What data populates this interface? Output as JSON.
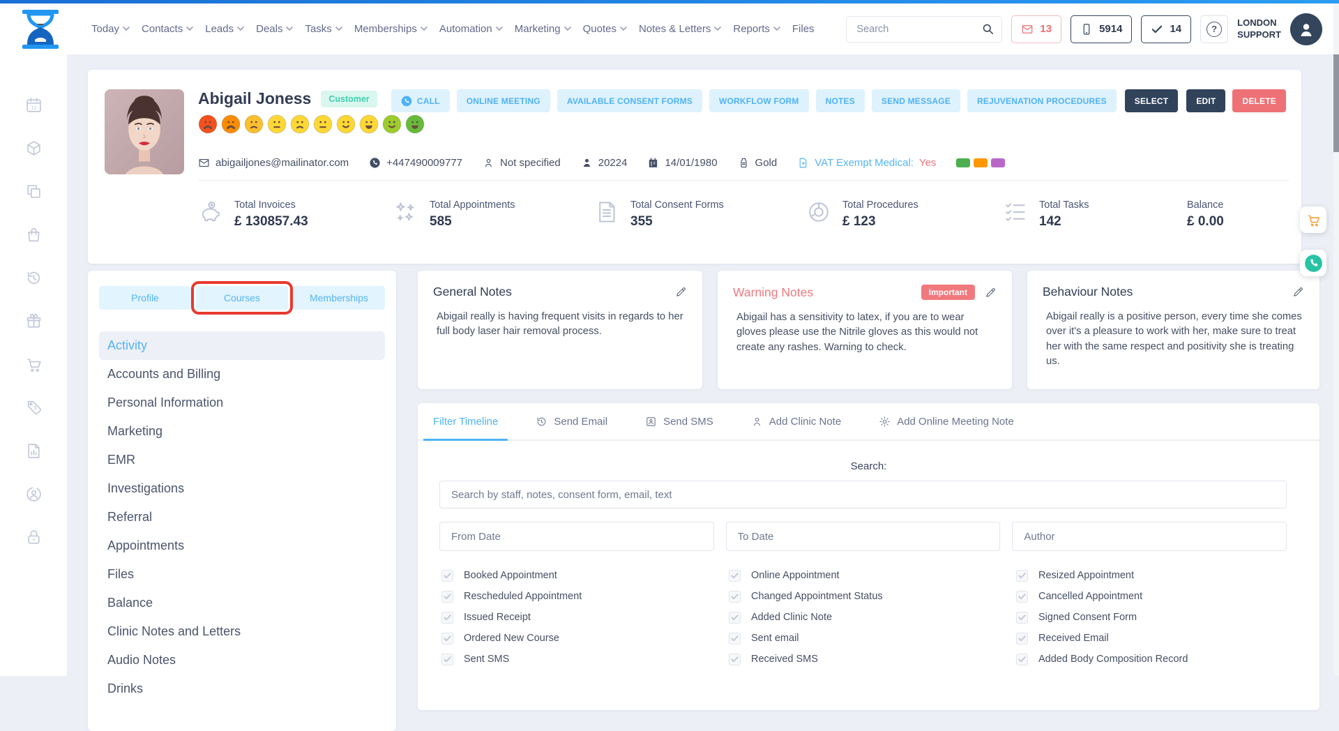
{
  "colors": {
    "accent_blue": "#54b5f9",
    "navy": "#31435a",
    "danger": "#ee7176",
    "teal_badge": "#3fd0ae",
    "warning_red": "#f0797f",
    "annotation_red": "#e8392f",
    "cart_orange": "#f5a33c",
    "phone_teal": "#27c3a4",
    "top_bar_blue": "#2181e2"
  },
  "header": {
    "search_placeholder": "Search",
    "badges": {
      "messages": "13",
      "phone": "5914",
      "tasks": "14"
    },
    "location_line1": "LONDON",
    "location_line2": "SUPPORT",
    "nav": [
      {
        "label": "Today"
      },
      {
        "label": "Contacts"
      },
      {
        "label": "Leads"
      },
      {
        "label": "Deals"
      },
      {
        "label": "Tasks"
      },
      {
        "label": "Memberships"
      },
      {
        "label": "Automation"
      },
      {
        "label": "Marketing"
      },
      {
        "label": "Quotes"
      },
      {
        "label": "Notes & Letters"
      },
      {
        "label": "Reports"
      },
      {
        "label": "Files"
      }
    ]
  },
  "sidebar_icons": [
    "calendar-icon",
    "package-icon",
    "copy-icon",
    "shopping-bag-icon",
    "history-icon",
    "gift-icon",
    "cart-icon",
    "price-tag-icon",
    "report-icon",
    "user-circle-icon",
    "lock-icon"
  ],
  "profile": {
    "name": "Abigail Joness",
    "type_badge": "Customer",
    "email": "abigailjones@mailinator.com",
    "phone": "+447490009777",
    "field_not_specified": "Not specified",
    "customer_id": "20224",
    "dob": "14/01/1980",
    "tier": "Gold",
    "vat_label": "VAT Exempt Medical:",
    "vat_value": "Yes",
    "label_colors": [
      "#4caf50",
      "#ff9800",
      "#ba68c8"
    ],
    "mood_faces": [
      {
        "color": "#f4511e",
        "mouth": "sad-open"
      },
      {
        "color": "#fb8c00",
        "mouth": "sad-open"
      },
      {
        "color": "#fbc02d",
        "mouth": "frown"
      },
      {
        "color": "#fdd835",
        "mouth": "neutral"
      },
      {
        "color": "#fdd835",
        "mouth": "frown"
      },
      {
        "color": "#fdd835",
        "mouth": "neutral"
      },
      {
        "color": "#fdd835",
        "mouth": "smile"
      },
      {
        "color": "#fdd835",
        "mouth": "grin"
      },
      {
        "color": "#9ccc2e",
        "mouth": "smile"
      },
      {
        "color": "#66bb3a",
        "mouth": "grin"
      }
    ]
  },
  "actions": {
    "call": "CALL",
    "online_meeting": "ONLINE MEETING",
    "consent_forms": "AVAILABLE CONSENT FORMS",
    "workflow_form": "WORKFLOW FORM",
    "notes": "NOTES",
    "send_message": "SEND MESSAGE",
    "rejuvenation": "REJUVENATION PROCEDURES",
    "select": "SELECT",
    "edit": "EDIT",
    "delete": "DELETE"
  },
  "stats": [
    {
      "label": "Total Invoices",
      "value": "£ 130857.43"
    },
    {
      "label": "Total Appointments",
      "value": "585"
    },
    {
      "label": "Total Consent Forms",
      "value": "355"
    },
    {
      "label": "Total Procedures",
      "value": "£ 123"
    },
    {
      "label": "Total Tasks",
      "value": "142"
    },
    {
      "label": "Balance",
      "value": "£ 0.00"
    }
  ],
  "profile_tabs": [
    {
      "label": "Profile"
    },
    {
      "label": "Courses",
      "annotated": true
    },
    {
      "label": "Memberships"
    }
  ],
  "menu": {
    "active": "Activity",
    "items": [
      "Activity",
      "Accounts and Billing",
      "Personal Information",
      "Marketing",
      "EMR",
      "Investigations",
      "Referral",
      "Appointments",
      "Files",
      "Balance",
      "Clinic Notes and Letters",
      "Audio Notes",
      "Drinks"
    ]
  },
  "notes_cards": [
    {
      "title": "General Notes",
      "body": "Abigail really is having frequent visits in regards to her full body laser hair removal process."
    },
    {
      "title": "Warning Notes",
      "badge": "Important",
      "body": "Abigail has a sensitivity to latex, if you are to wear gloves please use the Nitrile gloves as this would not create any rashes. Warning to check."
    },
    {
      "title": "Behaviour Notes",
      "body": "Abigail really is a positive person, every time she comes over it's a pleasure to work with her, make sure to treat her with the same respect and positivity she is treating us."
    }
  ],
  "timeline": {
    "tabs": [
      {
        "label": "Filter Timeline",
        "active": true
      },
      {
        "label": "Send Email"
      },
      {
        "label": "Send SMS"
      },
      {
        "label": "Add Clinic Note"
      },
      {
        "label": "Add Online Meeting Note"
      }
    ],
    "search_label": "Search:",
    "search_placeholder": "Search by staff, notes, consent form, email, text",
    "filters": {
      "from": "From Date",
      "to": "To Date",
      "author": "Author"
    },
    "checkboxes": [
      {
        "label": "Booked Appointment",
        "checked": true
      },
      {
        "label": "Online Appointment",
        "checked": true
      },
      {
        "label": "Resized Appointment",
        "checked": true
      },
      {
        "label": "Rescheduled Appointment",
        "checked": true
      },
      {
        "label": "Changed Appointment Status",
        "checked": true
      },
      {
        "label": "Cancelled Appointment",
        "checked": true
      },
      {
        "label": "Issued Receipt",
        "checked": true
      },
      {
        "label": "Added Clinic Note",
        "checked": true
      },
      {
        "label": "Signed Consent Form",
        "checked": true
      },
      {
        "label": "Ordered New Course",
        "checked": true
      },
      {
        "label": "Sent email",
        "checked": true
      },
      {
        "label": "Received Email",
        "checked": true
      },
      {
        "label": "Sent SMS",
        "checked": true
      },
      {
        "label": "Received SMS",
        "checked": true
      },
      {
        "label": "Added Body Composition Record",
        "checked": true
      }
    ]
  }
}
